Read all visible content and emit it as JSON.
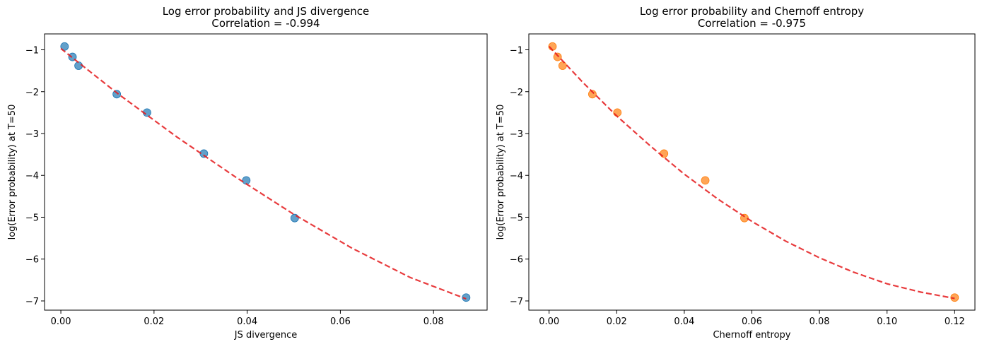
{
  "chart_data": [
    {
      "type": "scatter",
      "title": "Log error probability and JS divergence",
      "subtitle": "Correlation = -0.994",
      "xlabel": "JS divergence",
      "ylabel": "log(Error probability) at T=50",
      "xlim": [
        -0.0035,
        0.0915
      ],
      "ylim": [
        -7.22,
        -0.62
      ],
      "xticks": [
        0.0,
        0.02,
        0.04,
        0.06,
        0.08
      ],
      "xtick_labels": [
        "0.00",
        "0.02",
        "0.04",
        "0.06",
        "0.08"
      ],
      "yticks": [
        -7,
        -6,
        -5,
        -4,
        -3,
        -2,
        -1
      ],
      "ytick_labels": [
        "−7",
        "−6",
        "−5",
        "−4",
        "−3",
        "−2",
        "−1"
      ],
      "point_color": "#1f77b4",
      "fit_color": "#e41a1c",
      "series": [
        {
          "name": "data",
          "x": [
            0.0008,
            0.0025,
            0.0038,
            0.012,
            0.0185,
            0.0307,
            0.0398,
            0.0502,
            0.087
          ],
          "y": [
            -0.92,
            -1.17,
            -1.38,
            -2.06,
            -2.5,
            -3.48,
            -4.12,
            -5.02,
            -6.92
          ]
        },
        {
          "name": "fit",
          "fit": "quadratic",
          "x": [
            0.0,
            0.0125,
            0.025,
            0.0375,
            0.05,
            0.0625,
            0.075,
            0.087
          ],
          "y": [
            -0.97,
            -2.07,
            -3.09,
            -4.04,
            -4.93,
            -5.74,
            -6.44,
            -6.95
          ]
        }
      ]
    },
    {
      "type": "scatter",
      "title": "Log error probability and Chernoff entropy",
      "subtitle": "Correlation = -0.975",
      "xlabel": "Chernoff entropy",
      "ylabel": "log(Error probability) at T=50",
      "xlim": [
        -0.006,
        0.126
      ],
      "ylim": [
        -7.22,
        -0.62
      ],
      "xticks": [
        0.0,
        0.02,
        0.04,
        0.06,
        0.08,
        0.1,
        0.12
      ],
      "xtick_labels": [
        "0.00",
        "0.02",
        "0.04",
        "0.06",
        "0.08",
        "0.10",
        "0.12"
      ],
      "yticks": [
        -7,
        -6,
        -5,
        -4,
        -3,
        -2,
        -1
      ],
      "ytick_labels": [
        "−7",
        "−6",
        "−5",
        "−4",
        "−3",
        "−2",
        "−1"
      ],
      "point_color": "#ff7f0e",
      "fit_color": "#e41a1c",
      "series": [
        {
          "name": "data",
          "x": [
            0.001,
            0.0025,
            0.004,
            0.0128,
            0.0202,
            0.034,
            0.0462,
            0.0578,
            0.12
          ],
          "y": [
            -0.92,
            -1.17,
            -1.38,
            -2.06,
            -2.5,
            -3.48,
            -4.12,
            -5.02,
            -6.92
          ]
        },
        {
          "name": "fit",
          "fit": "quadratic",
          "x": [
            0.0,
            0.01,
            0.02,
            0.03,
            0.04,
            0.05,
            0.06,
            0.07,
            0.08,
            0.09,
            0.1,
            0.11,
            0.12
          ],
          "y": [
            -0.92,
            -1.78,
            -2.58,
            -3.3,
            -3.97,
            -4.57,
            -5.1,
            -5.57,
            -5.97,
            -6.31,
            -6.59,
            -6.79,
            -6.94
          ]
        }
      ]
    }
  ]
}
